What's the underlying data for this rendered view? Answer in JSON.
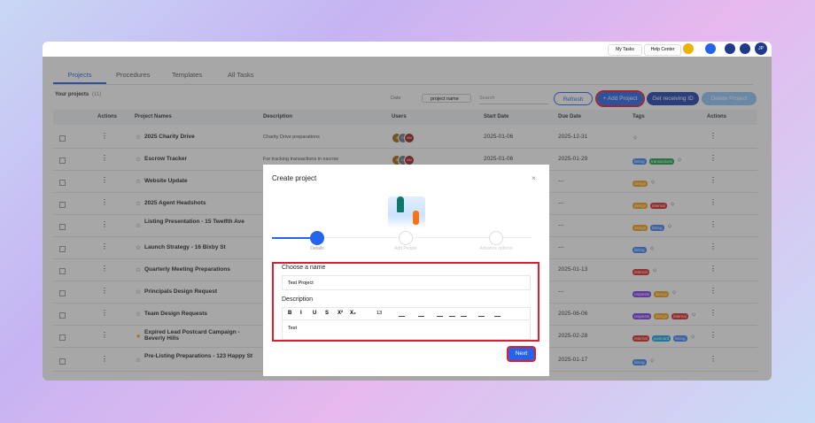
{
  "topbar": {
    "my_tasks": "My Tasks",
    "help_center": "Help Center",
    "avatar": "JP"
  },
  "tabs": [
    "Projects",
    "Procedures",
    "Templates",
    "All Tasks"
  ],
  "section": {
    "title": "Your projects",
    "count": "(11)"
  },
  "toolbar": {
    "date": "Date",
    "sort": "project name",
    "search_placeholder": "Search",
    "refresh": "Refresh",
    "add_project": "+ Add Project",
    "receiving_id": "Get receiving ID",
    "delete_project": "Delete Project"
  },
  "table": {
    "headers": [
      "Actions",
      "Project Names",
      "Description",
      "Users",
      "Start Date",
      "Due Date",
      "Tags",
      "Actions"
    ],
    "rows": [
      {
        "name": "2025 Charity Drive",
        "description": "Charity Drive preparations",
        "users": [
          "JF",
          "DI",
          "MM"
        ],
        "start": "2025-01-06",
        "due": "2025-12-31",
        "tags": []
      },
      {
        "name": "Escrow Tracker",
        "description": "For tracking transactions in escrow",
        "users": [
          "JF",
          "DI",
          "MM"
        ],
        "start": "2025-01-06",
        "due": "2025-01-29",
        "tags": [
          {
            "label": "listing",
            "color": "#3b82f6"
          },
          {
            "label": "transactions",
            "color": "#16a34a"
          }
        ]
      },
      {
        "name": "Website Update",
        "due": "---",
        "tags": [
          {
            "label": "design",
            "color": "#f59e0b"
          }
        ]
      },
      {
        "name": "2025 Agent Headshots",
        "due": "---",
        "tags": [
          {
            "label": "design",
            "color": "#f59e0b"
          },
          {
            "label": "internal",
            "color": "#dc2626"
          }
        ]
      },
      {
        "name": "Listing Presentation - 15 Twelfth Ave",
        "due": "---",
        "tags": [
          {
            "label": "design",
            "color": "#f59e0b"
          },
          {
            "label": "listing",
            "color": "#3b82f6"
          }
        ]
      },
      {
        "name": "Launch Strategy - 16 Bixby St",
        "due": "---",
        "tags": [
          {
            "label": "listing",
            "color": "#3b82f6"
          }
        ]
      },
      {
        "name": "Quarterly Meeting Preparations",
        "due": "2025-01-13",
        "tags": [
          {
            "label": "internal",
            "color": "#dc2626"
          }
        ]
      },
      {
        "name": "Principals Design Request",
        "due": "---",
        "tags": [
          {
            "label": "requests",
            "color": "#7c3aed"
          },
          {
            "label": "design",
            "color": "#f59e0b"
          }
        ]
      },
      {
        "name": "Team Design Requests",
        "due": "2025-06-06",
        "tags": [
          {
            "label": "requests",
            "color": "#7c3aed"
          },
          {
            "label": "design",
            "color": "#f59e0b"
          },
          {
            "label": "internal",
            "color": "#dc2626"
          }
        ]
      },
      {
        "name": "Expired Lead Postcard Campaign - Beverly Hills",
        "starred": true,
        "due": "2025-02-28",
        "tags": [
          {
            "label": "internal",
            "color": "#dc2626"
          },
          {
            "label": "postcard",
            "color": "#0ea5e9"
          },
          {
            "label": "listing",
            "color": "#3b82f6"
          }
        ]
      },
      {
        "name": "Pre-Listing Preparations - 123 Happy St",
        "due": "2025-01-17",
        "tags": [
          {
            "label": "listing",
            "color": "#3b82f6"
          }
        ]
      }
    ]
  },
  "modal": {
    "title": "Create project",
    "steps": [
      "Details",
      "Add People",
      "Advance options"
    ],
    "name_label": "Choose a name",
    "name_value": "Test Project",
    "description_label": "Description",
    "editor_tools": [
      "B",
      "I",
      "U",
      "S",
      "X²",
      "X₂"
    ],
    "font_size": "13",
    "description_value": "Test",
    "next": "Next"
  }
}
